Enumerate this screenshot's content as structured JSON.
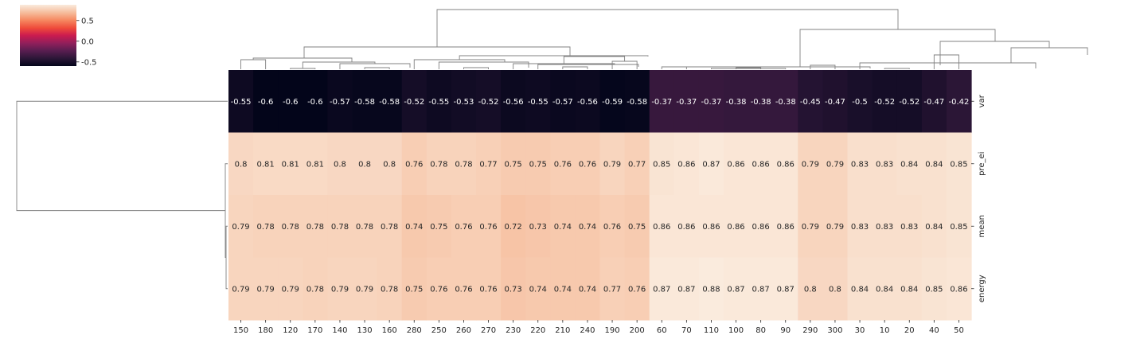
{
  "chart_data": {
    "type": "heatmap",
    "columns": [
      "150",
      "180",
      "120",
      "170",
      "140",
      "130",
      "160",
      "280",
      "250",
      "260",
      "270",
      "230",
      "220",
      "210",
      "240",
      "190",
      "200",
      "60",
      "70",
      "110",
      "100",
      "80",
      "90",
      "290",
      "300",
      "30",
      "10",
      "20",
      "40",
      "50"
    ],
    "rows": [
      "var",
      "pre_ei",
      "mean",
      "energy"
    ],
    "values": [
      [
        -0.55,
        -0.6,
        -0.6,
        -0.6,
        -0.57,
        -0.58,
        -0.58,
        -0.52,
        -0.55,
        -0.53,
        -0.52,
        -0.56,
        -0.55,
        -0.57,
        -0.56,
        -0.59,
        -0.58,
        -0.37,
        -0.37,
        -0.37,
        -0.38,
        -0.38,
        -0.38,
        -0.45,
        -0.47,
        -0.5,
        -0.52,
        -0.52,
        -0.47,
        -0.42
      ],
      [
        0.8,
        0.81,
        0.81,
        0.81,
        0.8,
        0.8,
        0.8,
        0.76,
        0.78,
        0.78,
        0.77,
        0.75,
        0.75,
        0.76,
        0.76,
        0.79,
        0.77,
        0.85,
        0.86,
        0.87,
        0.86,
        0.86,
        0.86,
        0.79,
        0.79,
        0.83,
        0.83,
        0.84,
        0.84,
        0.85
      ],
      [
        0.79,
        0.78,
        0.78,
        0.78,
        0.78,
        0.78,
        0.78,
        0.74,
        0.75,
        0.76,
        0.76,
        0.72,
        0.73,
        0.74,
        0.74,
        0.76,
        0.75,
        0.86,
        0.86,
        0.86,
        0.86,
        0.86,
        0.86,
        0.79,
        0.79,
        0.83,
        0.83,
        0.83,
        0.84,
        0.85
      ],
      [
        0.79,
        0.79,
        0.79,
        0.78,
        0.79,
        0.79,
        0.78,
        0.75,
        0.76,
        0.76,
        0.76,
        0.73,
        0.74,
        0.74,
        0.74,
        0.77,
        0.76,
        0.87,
        0.87,
        0.88,
        0.87,
        0.87,
        0.87,
        0.8,
        0.8,
        0.84,
        0.84,
        0.84,
        0.85,
        0.86
      ]
    ],
    "colorbar": {
      "ticks": [
        "0.5",
        "0.0",
        "-0.5"
      ],
      "tick_values": [
        0.5,
        0.0,
        -0.5
      ],
      "vmin": -0.6,
      "vmax": 0.88,
      "cmap": "rocket"
    },
    "grid": false,
    "dendrogram_color": "#808080"
  }
}
